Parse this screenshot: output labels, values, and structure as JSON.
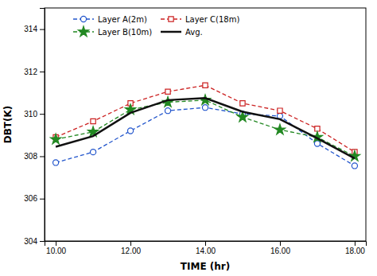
{
  "chart_data": {
    "type": "line",
    "xlabel": "TIME (hr)",
    "ylabel": "DBT(K)",
    "x": [
      10.0,
      11.0,
      12.0,
      13.0,
      14.0,
      15.0,
      16.0,
      17.0,
      18.0
    ],
    "series": [
      {
        "name": "Layer A(2m)",
        "color": "#2255cc",
        "marker": "circle",
        "line_style": "dashed",
        "values": [
          307.7,
          308.2,
          309.2,
          310.15,
          310.3,
          310.0,
          309.9,
          308.6,
          307.55
        ]
      },
      {
        "name": "Layer C(18m)",
        "color": "#cc2222",
        "marker": "square",
        "line_style": "dashed",
        "values": [
          308.9,
          309.65,
          310.5,
          311.05,
          311.35,
          310.5,
          310.15,
          309.3,
          308.2
        ]
      },
      {
        "name": "Layer B(10m)",
        "color": "#228822",
        "marker": "star",
        "line_style": "dashed",
        "values": [
          308.8,
          309.15,
          310.2,
          310.55,
          310.65,
          309.85,
          309.25,
          308.9,
          308.0
        ]
      },
      {
        "name": "Avg.",
        "color": "#111111",
        "line_style": "solid",
        "values": [
          308.45,
          308.95,
          310.05,
          310.65,
          310.75,
          310.1,
          309.75,
          308.85,
          307.9
        ]
      }
    ],
    "xlim": [
      9.7,
      18.3
    ],
    "ylim": [
      304,
      315
    ],
    "xticks": [
      {
        "value": 10.0,
        "label": "10.00"
      },
      {
        "value": 12.0,
        "label": "12.00"
      },
      {
        "value": 14.0,
        "label": "14.00"
      },
      {
        "value": 16.0,
        "label": "16.00"
      },
      {
        "value": 18.0,
        "label": "18.00"
      }
    ],
    "yticks": [
      304,
      306,
      308,
      310,
      312,
      314
    ],
    "grid": false,
    "legend": "upper left"
  }
}
